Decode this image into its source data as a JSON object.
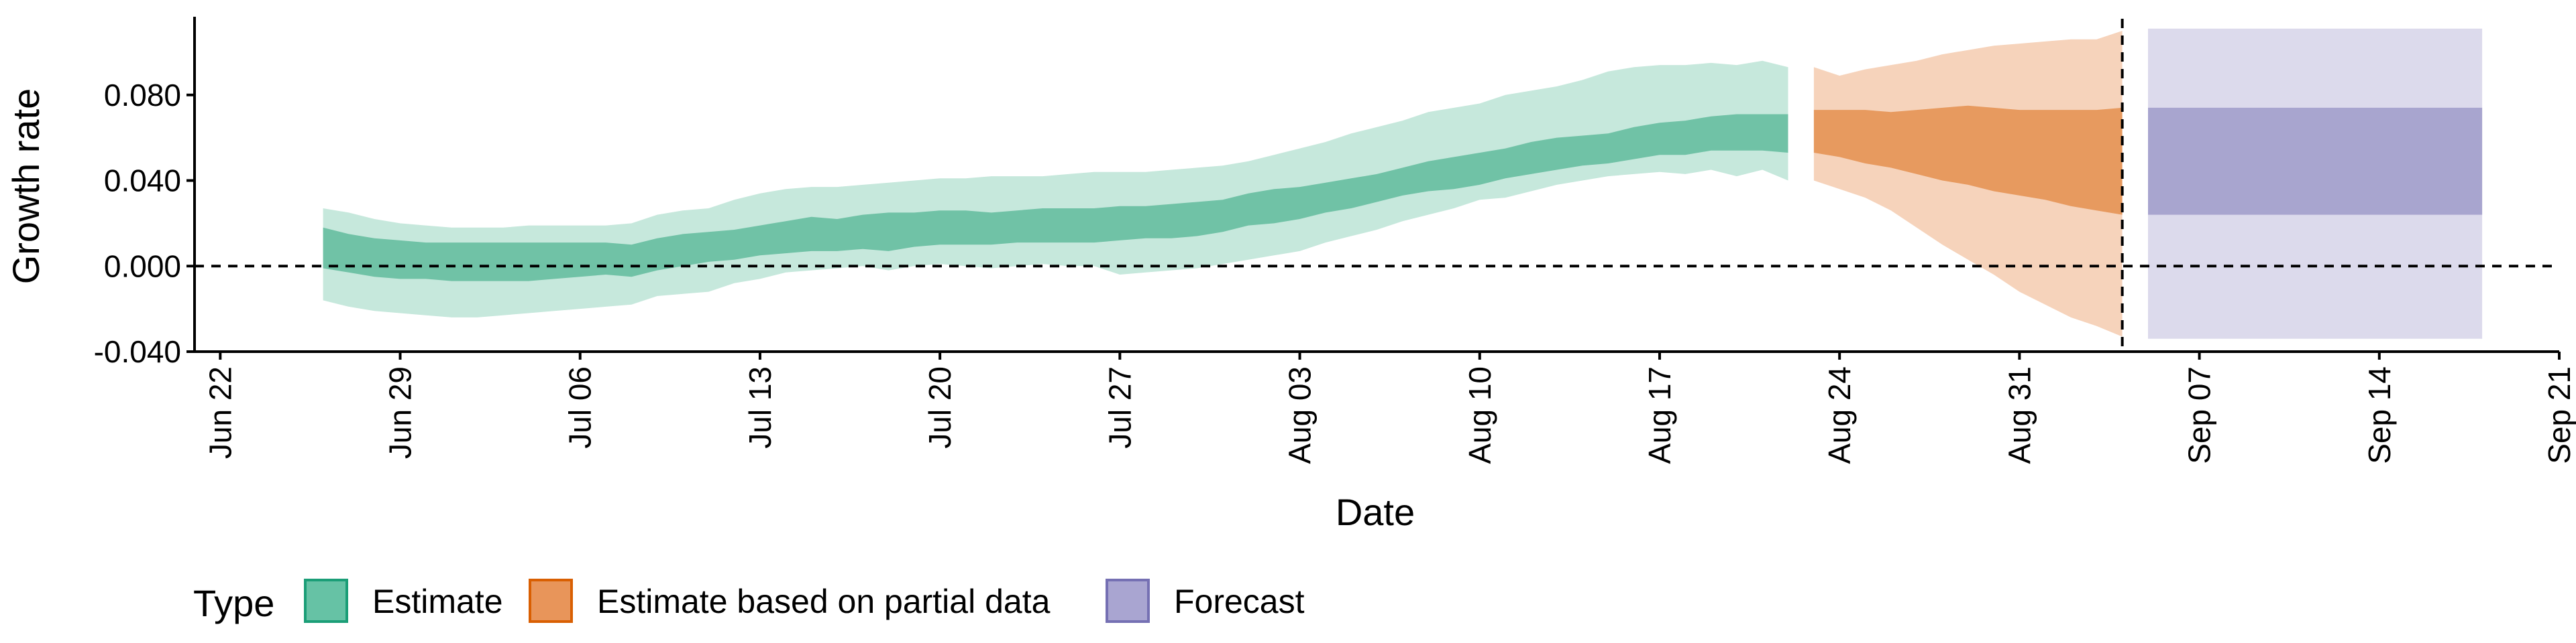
{
  "chart_data": {
    "type": "area",
    "title": "",
    "xlabel": "Date",
    "ylabel": "Growth rate",
    "xlim": [
      "2020-06-21",
      "2020-09-21"
    ],
    "ylim": [
      -0.04,
      0.115
    ],
    "x_ticks": [
      {
        "date": "2020-06-22",
        "label": "Jun 22"
      },
      {
        "date": "2020-06-29",
        "label": "Jun 29"
      },
      {
        "date": "2020-07-06",
        "label": "Jul 06"
      },
      {
        "date": "2020-07-13",
        "label": "Jul 13"
      },
      {
        "date": "2020-07-20",
        "label": "Jul 20"
      },
      {
        "date": "2020-07-27",
        "label": "Jul 27"
      },
      {
        "date": "2020-08-03",
        "label": "Aug 03"
      },
      {
        "date": "2020-08-10",
        "label": "Aug 10"
      },
      {
        "date": "2020-08-17",
        "label": "Aug 17"
      },
      {
        "date": "2020-08-24",
        "label": "Aug 24"
      },
      {
        "date": "2020-08-31",
        "label": "Aug 31"
      },
      {
        "date": "2020-09-07",
        "label": "Sep 07"
      },
      {
        "date": "2020-09-14",
        "label": "Sep 14"
      },
      {
        "date": "2020-09-21",
        "label": "Sep 21"
      }
    ],
    "y_ticks": [
      {
        "value": -0.04,
        "label": "-0.040"
      },
      {
        "value": 0.0,
        "label": "0.000"
      },
      {
        "value": 0.04,
        "label": "0.040"
      },
      {
        "value": 0.08,
        "label": "0.080"
      }
    ],
    "reference_lines": [
      {
        "orientation": "horizontal",
        "y": 0.0,
        "style": "dashed"
      },
      {
        "orientation": "vertical",
        "x": "2020-09-04",
        "style": "dashed"
      }
    ],
    "grid": false,
    "legend": {
      "title": "Type",
      "placement": "bottom-left",
      "entries": [
        {
          "label": "Estimate",
          "fill": "#66c2a5",
          "stroke": "#1b9e77"
        },
        {
          "label": "Estimate based on partial data",
          "fill": "#e8955a",
          "stroke": "#d95f02"
        },
        {
          "label": "Forecast",
          "fill": "#a9a5d1",
          "stroke": "#7570b3"
        }
      ]
    },
    "series": [
      {
        "type_ref": "Estimate",
        "colors": {
          "outer": "#c6e8dc",
          "inner": "#70c2a6"
        },
        "dates": [
          "2020-06-26",
          "2020-06-27",
          "2020-06-28",
          "2020-06-29",
          "2020-06-30",
          "2020-07-01",
          "2020-07-02",
          "2020-07-03",
          "2020-07-04",
          "2020-07-05",
          "2020-07-06",
          "2020-07-07",
          "2020-07-08",
          "2020-07-09",
          "2020-07-10",
          "2020-07-11",
          "2020-07-12",
          "2020-07-13",
          "2020-07-14",
          "2020-07-15",
          "2020-07-16",
          "2020-07-17",
          "2020-07-18",
          "2020-07-19",
          "2020-07-20",
          "2020-07-21",
          "2020-07-22",
          "2020-07-23",
          "2020-07-24",
          "2020-07-25",
          "2020-07-26",
          "2020-07-27",
          "2020-07-28",
          "2020-07-29",
          "2020-07-30",
          "2020-07-31",
          "2020-08-01",
          "2020-08-02",
          "2020-08-03",
          "2020-08-04",
          "2020-08-05",
          "2020-08-06",
          "2020-08-07",
          "2020-08-08",
          "2020-08-09",
          "2020-08-10",
          "2020-08-11",
          "2020-08-12",
          "2020-08-13",
          "2020-08-14",
          "2020-08-15",
          "2020-08-16",
          "2020-08-17",
          "2020-08-18",
          "2020-08-19",
          "2020-08-20",
          "2020-08-21",
          "2020-08-22"
        ],
        "outer_lower": [
          -0.016,
          -0.019,
          -0.021,
          -0.022,
          -0.023,
          -0.024,
          -0.024,
          -0.023,
          -0.022,
          -0.021,
          -0.02,
          -0.019,
          -0.018,
          -0.014,
          -0.013,
          -0.012,
          -0.008,
          -0.006,
          -0.003,
          -0.002,
          -0.001,
          0.0,
          -0.002,
          0.0,
          0.001,
          0.0,
          -0.001,
          0.0,
          0.001,
          0.0,
          0.0,
          -0.004,
          -0.003,
          -0.002,
          -0.001,
          0.001,
          0.003,
          0.005,
          0.007,
          0.011,
          0.014,
          0.017,
          0.021,
          0.024,
          0.027,
          0.031,
          0.032,
          0.035,
          0.038,
          0.04,
          0.042,
          0.043,
          0.044,
          0.043,
          0.045,
          0.042,
          0.045,
          0.04
        ],
        "inner_lower": [
          -0.001,
          -0.003,
          -0.005,
          -0.006,
          -0.006,
          -0.007,
          -0.007,
          -0.007,
          -0.007,
          -0.006,
          -0.005,
          -0.004,
          -0.005,
          -0.002,
          0.0,
          0.002,
          0.003,
          0.005,
          0.006,
          0.007,
          0.007,
          0.008,
          0.007,
          0.009,
          0.01,
          0.01,
          0.01,
          0.011,
          0.011,
          0.011,
          0.011,
          0.012,
          0.013,
          0.013,
          0.014,
          0.016,
          0.019,
          0.02,
          0.022,
          0.025,
          0.027,
          0.03,
          0.033,
          0.035,
          0.036,
          0.038,
          0.041,
          0.043,
          0.045,
          0.047,
          0.048,
          0.05,
          0.052,
          0.052,
          0.054,
          0.054,
          0.054,
          0.053
        ],
        "inner_upper": [
          0.018,
          0.015,
          0.013,
          0.012,
          0.011,
          0.011,
          0.011,
          0.011,
          0.011,
          0.011,
          0.011,
          0.011,
          0.01,
          0.013,
          0.015,
          0.016,
          0.017,
          0.019,
          0.021,
          0.023,
          0.022,
          0.024,
          0.025,
          0.025,
          0.026,
          0.026,
          0.025,
          0.026,
          0.027,
          0.027,
          0.027,
          0.028,
          0.028,
          0.029,
          0.03,
          0.031,
          0.034,
          0.036,
          0.037,
          0.039,
          0.041,
          0.043,
          0.046,
          0.049,
          0.051,
          0.053,
          0.055,
          0.058,
          0.06,
          0.061,
          0.062,
          0.065,
          0.067,
          0.068,
          0.07,
          0.071,
          0.071,
          0.071
        ],
        "outer_upper": [
          0.027,
          0.025,
          0.022,
          0.02,
          0.019,
          0.018,
          0.018,
          0.018,
          0.019,
          0.019,
          0.019,
          0.019,
          0.02,
          0.024,
          0.026,
          0.027,
          0.031,
          0.034,
          0.036,
          0.037,
          0.037,
          0.038,
          0.039,
          0.04,
          0.041,
          0.041,
          0.042,
          0.042,
          0.042,
          0.043,
          0.044,
          0.044,
          0.044,
          0.045,
          0.046,
          0.047,
          0.049,
          0.052,
          0.055,
          0.058,
          0.062,
          0.065,
          0.068,
          0.072,
          0.074,
          0.076,
          0.08,
          0.082,
          0.084,
          0.087,
          0.091,
          0.093,
          0.094,
          0.094,
          0.095,
          0.094,
          0.096,
          0.093
        ]
      },
      {
        "type_ref": "Estimate based on partial data",
        "colors": {
          "outer": "#f6d3bb",
          "inner": "#e79a5f"
        },
        "dates": [
          "2020-08-23",
          "2020-08-24",
          "2020-08-25",
          "2020-08-26",
          "2020-08-27",
          "2020-08-28",
          "2020-08-29",
          "2020-08-30",
          "2020-08-31",
          "2020-09-01",
          "2020-09-02",
          "2020-09-03",
          "2020-09-04"
        ],
        "outer_lower": [
          0.04,
          0.036,
          0.032,
          0.026,
          0.018,
          0.01,
          0.003,
          -0.004,
          -0.012,
          -0.018,
          -0.024,
          -0.028,
          -0.033
        ],
        "inner_lower": [
          0.053,
          0.051,
          0.048,
          0.046,
          0.043,
          0.04,
          0.038,
          0.035,
          0.033,
          0.031,
          0.028,
          0.026,
          0.024
        ],
        "inner_upper": [
          0.073,
          0.073,
          0.073,
          0.072,
          0.073,
          0.074,
          0.075,
          0.074,
          0.073,
          0.073,
          0.073,
          0.073,
          0.074
        ],
        "outer_upper": [
          0.093,
          0.089,
          0.092,
          0.094,
          0.096,
          0.099,
          0.101,
          0.103,
          0.104,
          0.105,
          0.106,
          0.106,
          0.11
        ]
      },
      {
        "type_ref": "Forecast",
        "colors": {
          "outer": "#dcdaec",
          "inner": "#a8a5cf"
        },
        "dates": [
          "2020-09-05",
          "2020-09-06",
          "2020-09-07",
          "2020-09-08",
          "2020-09-09",
          "2020-09-10",
          "2020-09-11",
          "2020-09-12",
          "2020-09-13",
          "2020-09-14",
          "2020-09-15",
          "2020-09-16",
          "2020-09-17",
          "2020-09-18"
        ],
        "outer_lower": [
          -0.034,
          -0.034,
          -0.034,
          -0.034,
          -0.034,
          -0.034,
          -0.034,
          -0.034,
          -0.034,
          -0.034,
          -0.034,
          -0.034,
          -0.034,
          -0.034
        ],
        "inner_lower": [
          0.024,
          0.024,
          0.024,
          0.024,
          0.024,
          0.024,
          0.024,
          0.024,
          0.024,
          0.024,
          0.024,
          0.024,
          0.024,
          0.024
        ],
        "inner_upper": [
          0.074,
          0.074,
          0.074,
          0.074,
          0.074,
          0.074,
          0.074,
          0.074,
          0.074,
          0.074,
          0.074,
          0.074,
          0.074,
          0.074
        ],
        "outer_upper": [
          0.111,
          0.111,
          0.111,
          0.111,
          0.111,
          0.111,
          0.111,
          0.111,
          0.111,
          0.111,
          0.111,
          0.111,
          0.111,
          0.111
        ]
      }
    ]
  }
}
